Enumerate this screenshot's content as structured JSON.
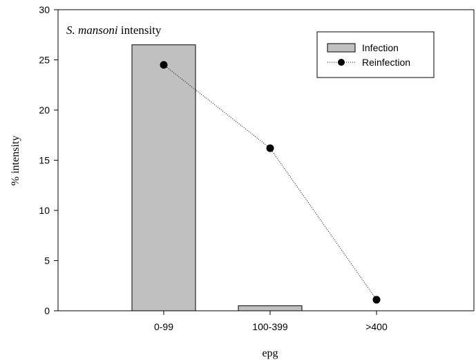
{
  "chart_data": {
    "type": "bar",
    "categories": [
      "0-99",
      "100-399",
      ">400"
    ],
    "series": [
      {
        "name": "Infection",
        "type": "bar",
        "values": [
          26.5,
          0.5,
          0
        ],
        "color": "#c0c0c0"
      },
      {
        "name": "Reinfection",
        "type": "line",
        "values": [
          24.5,
          16.2,
          1.1
        ],
        "color": "#000000"
      }
    ],
    "ylim": [
      0,
      30
    ],
    "yticks": [
      0,
      5,
      10,
      15,
      20,
      25,
      30
    ],
    "xlabel": "epg",
    "ylabel": "% intensity",
    "annotation": {
      "italic": "S. mansoni",
      "rest": " intensity"
    },
    "legend": {
      "position": "top-right"
    },
    "grid": false
  }
}
